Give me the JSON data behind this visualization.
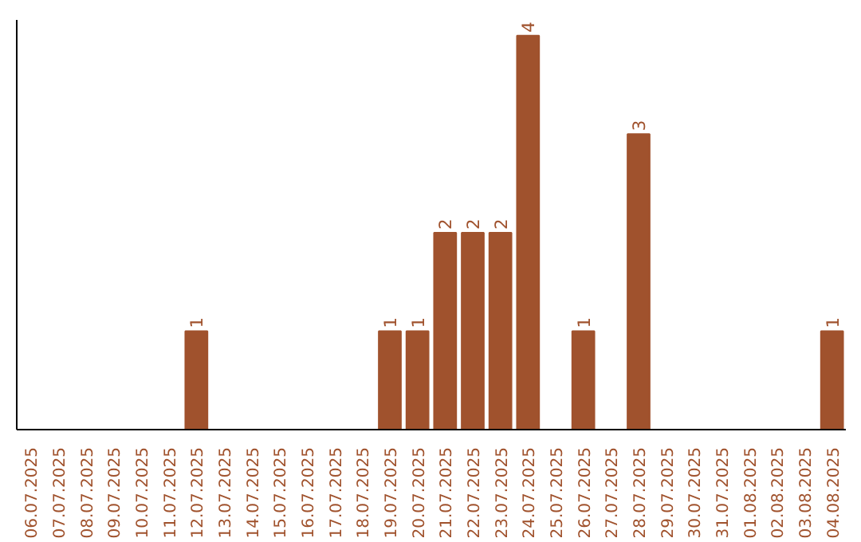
{
  "chart_data": {
    "type": "bar",
    "categories": [
      "06.07.2025",
      "07.07.2025",
      "08.07.2025",
      "09.07.2025",
      "10.07.2025",
      "11.07.2025",
      "12.07.2025",
      "13.07.2025",
      "14.07.2025",
      "15.07.2025",
      "16.07.2025",
      "17.07.2025",
      "18.07.2025",
      "19.07.2025",
      "20.07.2025",
      "21.07.2025",
      "22.07.2025",
      "23.07.2025",
      "24.07.2025",
      "25.07.2025",
      "26.07.2025",
      "27.07.2025",
      "28.07.2025",
      "29.07.2025",
      "30.07.2025",
      "31.07.2025",
      "01.08.2025",
      "02.08.2025",
      "03.08.2025",
      "04.08.2025"
    ],
    "values": [
      0,
      0,
      0,
      0,
      0,
      0,
      1,
      0,
      0,
      0,
      0,
      0,
      0,
      1,
      1,
      2,
      2,
      2,
      4,
      0,
      1,
      0,
      3,
      0,
      0,
      0,
      0,
      0,
      0,
      1
    ],
    "value_labels": [
      null,
      null,
      null,
      null,
      null,
      null,
      "1",
      null,
      null,
      null,
      null,
      null,
      null,
      "1",
      "1",
      "2",
      "2",
      "2",
      "4",
      null,
      "1",
      null,
      "3",
      null,
      null,
      null,
      null,
      null,
      null,
      "1"
    ],
    "color": "#a0522d",
    "tick_labels": "x",
    "grid": false
  }
}
